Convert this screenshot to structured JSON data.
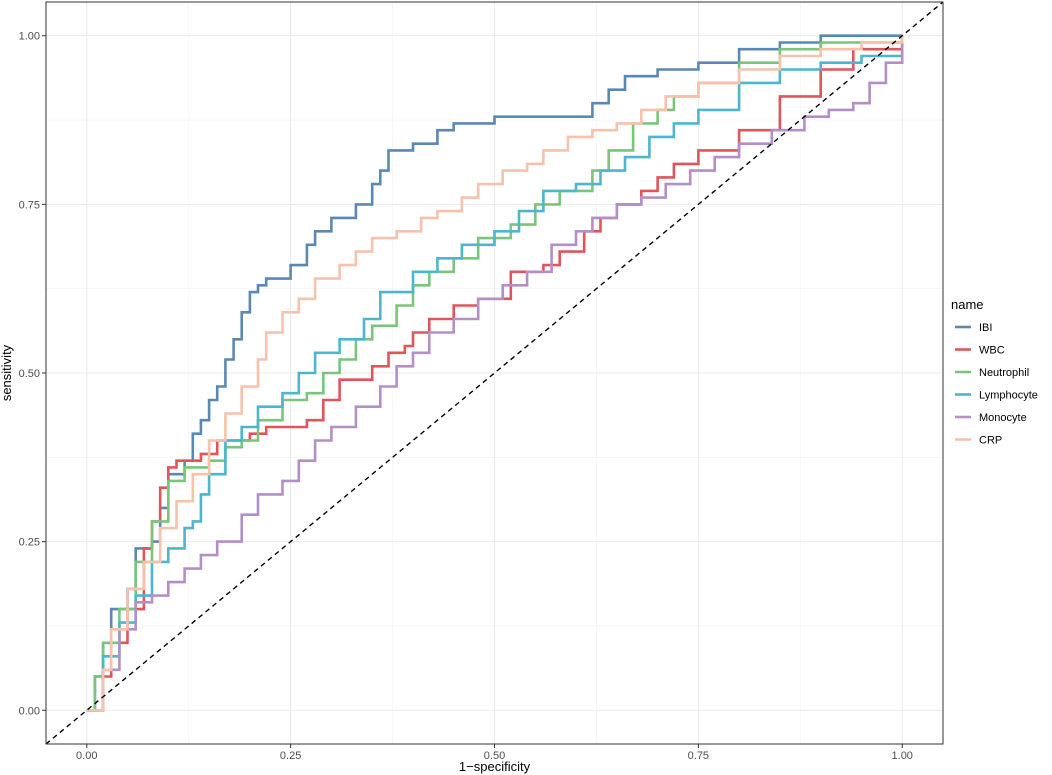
{
  "chart_data": {
    "type": "line",
    "title": "",
    "xlabel": "1−specificity",
    "ylabel": "sensitivity",
    "xlim": [
      -0.05,
      1.05
    ],
    "ylim": [
      -0.05,
      1.05
    ],
    "x_ticks": [
      "0.00",
      "0.25",
      "0.50",
      "0.75",
      "1.00"
    ],
    "y_ticks": [
      "0.00",
      "0.25",
      "0.50",
      "0.75",
      "1.00"
    ],
    "grid": true,
    "legend": {
      "title": "name",
      "position": "right"
    },
    "reference_line": {
      "style": "dashed",
      "color": "#000000",
      "from": [
        -0.05,
        -0.05
      ],
      "to": [
        1.05,
        1.05
      ]
    },
    "series": [
      {
        "name": "IBI",
        "color": "#5a88b5",
        "points": [
          [
            0,
            0
          ],
          [
            0.01,
            0.05
          ],
          [
            0.02,
            0.1
          ],
          [
            0.03,
            0.15
          ],
          [
            0.05,
            0.18
          ],
          [
            0.06,
            0.24
          ],
          [
            0.08,
            0.25
          ],
          [
            0.09,
            0.3
          ],
          [
            0.1,
            0.35
          ],
          [
            0.12,
            0.37
          ],
          [
            0.13,
            0.41
          ],
          [
            0.14,
            0.43
          ],
          [
            0.15,
            0.46
          ],
          [
            0.16,
            0.48
          ],
          [
            0.17,
            0.52
          ],
          [
            0.18,
            0.55
          ],
          [
            0.19,
            0.59
          ],
          [
            0.2,
            0.62
          ],
          [
            0.21,
            0.63
          ],
          [
            0.22,
            0.64
          ],
          [
            0.25,
            0.66
          ],
          [
            0.27,
            0.69
          ],
          [
            0.28,
            0.71
          ],
          [
            0.3,
            0.73
          ],
          [
            0.33,
            0.75
          ],
          [
            0.35,
            0.78
          ],
          [
            0.36,
            0.8
          ],
          [
            0.37,
            0.83
          ],
          [
            0.4,
            0.84
          ],
          [
            0.43,
            0.86
          ],
          [
            0.45,
            0.87
          ],
          [
            0.5,
            0.88
          ],
          [
            0.6,
            0.88
          ],
          [
            0.62,
            0.9
          ],
          [
            0.64,
            0.92
          ],
          [
            0.66,
            0.94
          ],
          [
            0.7,
            0.95
          ],
          [
            0.75,
            0.96
          ],
          [
            0.8,
            0.98
          ],
          [
            0.85,
            0.99
          ],
          [
            0.9,
            1.0
          ],
          [
            1.0,
            1.0
          ]
        ]
      },
      {
        "name": "WBC",
        "color": "#e0555a",
        "points": [
          [
            0,
            0
          ],
          [
            0.02,
            0.05
          ],
          [
            0.03,
            0.1
          ],
          [
            0.05,
            0.15
          ],
          [
            0.07,
            0.24
          ],
          [
            0.08,
            0.28
          ],
          [
            0.09,
            0.33
          ],
          [
            0.1,
            0.36
          ],
          [
            0.11,
            0.37
          ],
          [
            0.14,
            0.38
          ],
          [
            0.16,
            0.4
          ],
          [
            0.2,
            0.41
          ],
          [
            0.22,
            0.42
          ],
          [
            0.27,
            0.43
          ],
          [
            0.29,
            0.46
          ],
          [
            0.31,
            0.49
          ],
          [
            0.35,
            0.51
          ],
          [
            0.37,
            0.53
          ],
          [
            0.39,
            0.54
          ],
          [
            0.4,
            0.56
          ],
          [
            0.42,
            0.58
          ],
          [
            0.45,
            0.6
          ],
          [
            0.48,
            0.61
          ],
          [
            0.52,
            0.65
          ],
          [
            0.56,
            0.66
          ],
          [
            0.58,
            0.68
          ],
          [
            0.61,
            0.71
          ],
          [
            0.63,
            0.73
          ],
          [
            0.65,
            0.75
          ],
          [
            0.68,
            0.77
          ],
          [
            0.7,
            0.79
          ],
          [
            0.72,
            0.81
          ],
          [
            0.75,
            0.83
          ],
          [
            0.8,
            0.86
          ],
          [
            0.85,
            0.91
          ],
          [
            0.9,
            0.95
          ],
          [
            0.94,
            0.98
          ],
          [
            1.0,
            1.0
          ]
        ]
      },
      {
        "name": "Neutrophil",
        "color": "#7ac57a",
        "points": [
          [
            0,
            0
          ],
          [
            0.01,
            0.05
          ],
          [
            0.02,
            0.1
          ],
          [
            0.04,
            0.15
          ],
          [
            0.06,
            0.22
          ],
          [
            0.08,
            0.28
          ],
          [
            0.1,
            0.34
          ],
          [
            0.12,
            0.36
          ],
          [
            0.15,
            0.37
          ],
          [
            0.17,
            0.39
          ],
          [
            0.19,
            0.4
          ],
          [
            0.21,
            0.43
          ],
          [
            0.24,
            0.46
          ],
          [
            0.27,
            0.47
          ],
          [
            0.29,
            0.5
          ],
          [
            0.31,
            0.52
          ],
          [
            0.33,
            0.55
          ],
          [
            0.35,
            0.57
          ],
          [
            0.38,
            0.6
          ],
          [
            0.4,
            0.63
          ],
          [
            0.42,
            0.65
          ],
          [
            0.45,
            0.67
          ],
          [
            0.48,
            0.7
          ],
          [
            0.52,
            0.72
          ],
          [
            0.55,
            0.75
          ],
          [
            0.58,
            0.77
          ],
          [
            0.62,
            0.8
          ],
          [
            0.64,
            0.83
          ],
          [
            0.67,
            0.87
          ],
          [
            0.7,
            0.89
          ],
          [
            0.72,
            0.91
          ],
          [
            0.75,
            0.93
          ],
          [
            0.8,
            0.96
          ],
          [
            0.85,
            0.98
          ],
          [
            0.9,
            0.99
          ],
          [
            1.0,
            1.0
          ]
        ]
      },
      {
        "name": "Lymphocyte",
        "color": "#4bb6cc",
        "points": [
          [
            0,
            0
          ],
          [
            0.02,
            0.08
          ],
          [
            0.04,
            0.13
          ],
          [
            0.06,
            0.17
          ],
          [
            0.08,
            0.22
          ],
          [
            0.1,
            0.24
          ],
          [
            0.12,
            0.27
          ],
          [
            0.13,
            0.28
          ],
          [
            0.14,
            0.32
          ],
          [
            0.15,
            0.35
          ],
          [
            0.17,
            0.4
          ],
          [
            0.19,
            0.42
          ],
          [
            0.21,
            0.45
          ],
          [
            0.24,
            0.47
          ],
          [
            0.26,
            0.5
          ],
          [
            0.28,
            0.53
          ],
          [
            0.31,
            0.55
          ],
          [
            0.34,
            0.58
          ],
          [
            0.36,
            0.62
          ],
          [
            0.4,
            0.65
          ],
          [
            0.43,
            0.67
          ],
          [
            0.46,
            0.69
          ],
          [
            0.5,
            0.71
          ],
          [
            0.53,
            0.74
          ],
          [
            0.56,
            0.77
          ],
          [
            0.6,
            0.78
          ],
          [
            0.63,
            0.8
          ],
          [
            0.66,
            0.82
          ],
          [
            0.69,
            0.85
          ],
          [
            0.72,
            0.87
          ],
          [
            0.75,
            0.89
          ],
          [
            0.8,
            0.93
          ],
          [
            0.85,
            0.95
          ],
          [
            0.9,
            0.96
          ],
          [
            0.95,
            0.97
          ],
          [
            1.0,
            1.0
          ]
        ]
      },
      {
        "name": "Monocyte",
        "color": "#b48fc7",
        "points": [
          [
            0,
            0
          ],
          [
            0.02,
            0.06
          ],
          [
            0.04,
            0.12
          ],
          [
            0.06,
            0.16
          ],
          [
            0.08,
            0.17
          ],
          [
            0.1,
            0.19
          ],
          [
            0.12,
            0.21
          ],
          [
            0.14,
            0.23
          ],
          [
            0.16,
            0.25
          ],
          [
            0.19,
            0.29
          ],
          [
            0.21,
            0.32
          ],
          [
            0.24,
            0.34
          ],
          [
            0.26,
            0.37
          ],
          [
            0.28,
            0.4
          ],
          [
            0.3,
            0.42
          ],
          [
            0.33,
            0.45
          ],
          [
            0.36,
            0.48
          ],
          [
            0.38,
            0.51
          ],
          [
            0.4,
            0.53
          ],
          [
            0.42,
            0.56
          ],
          [
            0.45,
            0.58
          ],
          [
            0.48,
            0.61
          ],
          [
            0.51,
            0.63
          ],
          [
            0.54,
            0.65
          ],
          [
            0.57,
            0.69
          ],
          [
            0.6,
            0.71
          ],
          [
            0.62,
            0.73
          ],
          [
            0.65,
            0.75
          ],
          [
            0.68,
            0.76
          ],
          [
            0.71,
            0.78
          ],
          [
            0.74,
            0.8
          ],
          [
            0.77,
            0.82
          ],
          [
            0.8,
            0.84
          ],
          [
            0.84,
            0.86
          ],
          [
            0.88,
            0.88
          ],
          [
            0.91,
            0.89
          ],
          [
            0.94,
            0.9
          ],
          [
            0.96,
            0.93
          ],
          [
            0.98,
            0.96
          ],
          [
            1.0,
            1.0
          ]
        ]
      },
      {
        "name": "CRP",
        "color": "#f7c2ac",
        "points": [
          [
            0,
            0
          ],
          [
            0.02,
            0.06
          ],
          [
            0.03,
            0.12
          ],
          [
            0.05,
            0.18
          ],
          [
            0.07,
            0.22
          ],
          [
            0.09,
            0.27
          ],
          [
            0.11,
            0.31
          ],
          [
            0.13,
            0.35
          ],
          [
            0.15,
            0.4
          ],
          [
            0.17,
            0.44
          ],
          [
            0.19,
            0.48
          ],
          [
            0.21,
            0.52
          ],
          [
            0.22,
            0.56
          ],
          [
            0.24,
            0.59
          ],
          [
            0.26,
            0.61
          ],
          [
            0.28,
            0.64
          ],
          [
            0.31,
            0.66
          ],
          [
            0.33,
            0.68
          ],
          [
            0.35,
            0.7
          ],
          [
            0.38,
            0.71
          ],
          [
            0.41,
            0.73
          ],
          [
            0.43,
            0.74
          ],
          [
            0.46,
            0.76
          ],
          [
            0.48,
            0.78
          ],
          [
            0.51,
            0.8
          ],
          [
            0.54,
            0.81
          ],
          [
            0.56,
            0.83
          ],
          [
            0.59,
            0.85
          ],
          [
            0.62,
            0.86
          ],
          [
            0.65,
            0.87
          ],
          [
            0.68,
            0.89
          ],
          [
            0.71,
            0.91
          ],
          [
            0.75,
            0.93
          ],
          [
            0.8,
            0.95
          ],
          [
            0.85,
            0.97
          ],
          [
            0.9,
            0.98
          ],
          [
            0.95,
            0.99
          ],
          [
            1.0,
            1.0
          ]
        ]
      }
    ]
  }
}
